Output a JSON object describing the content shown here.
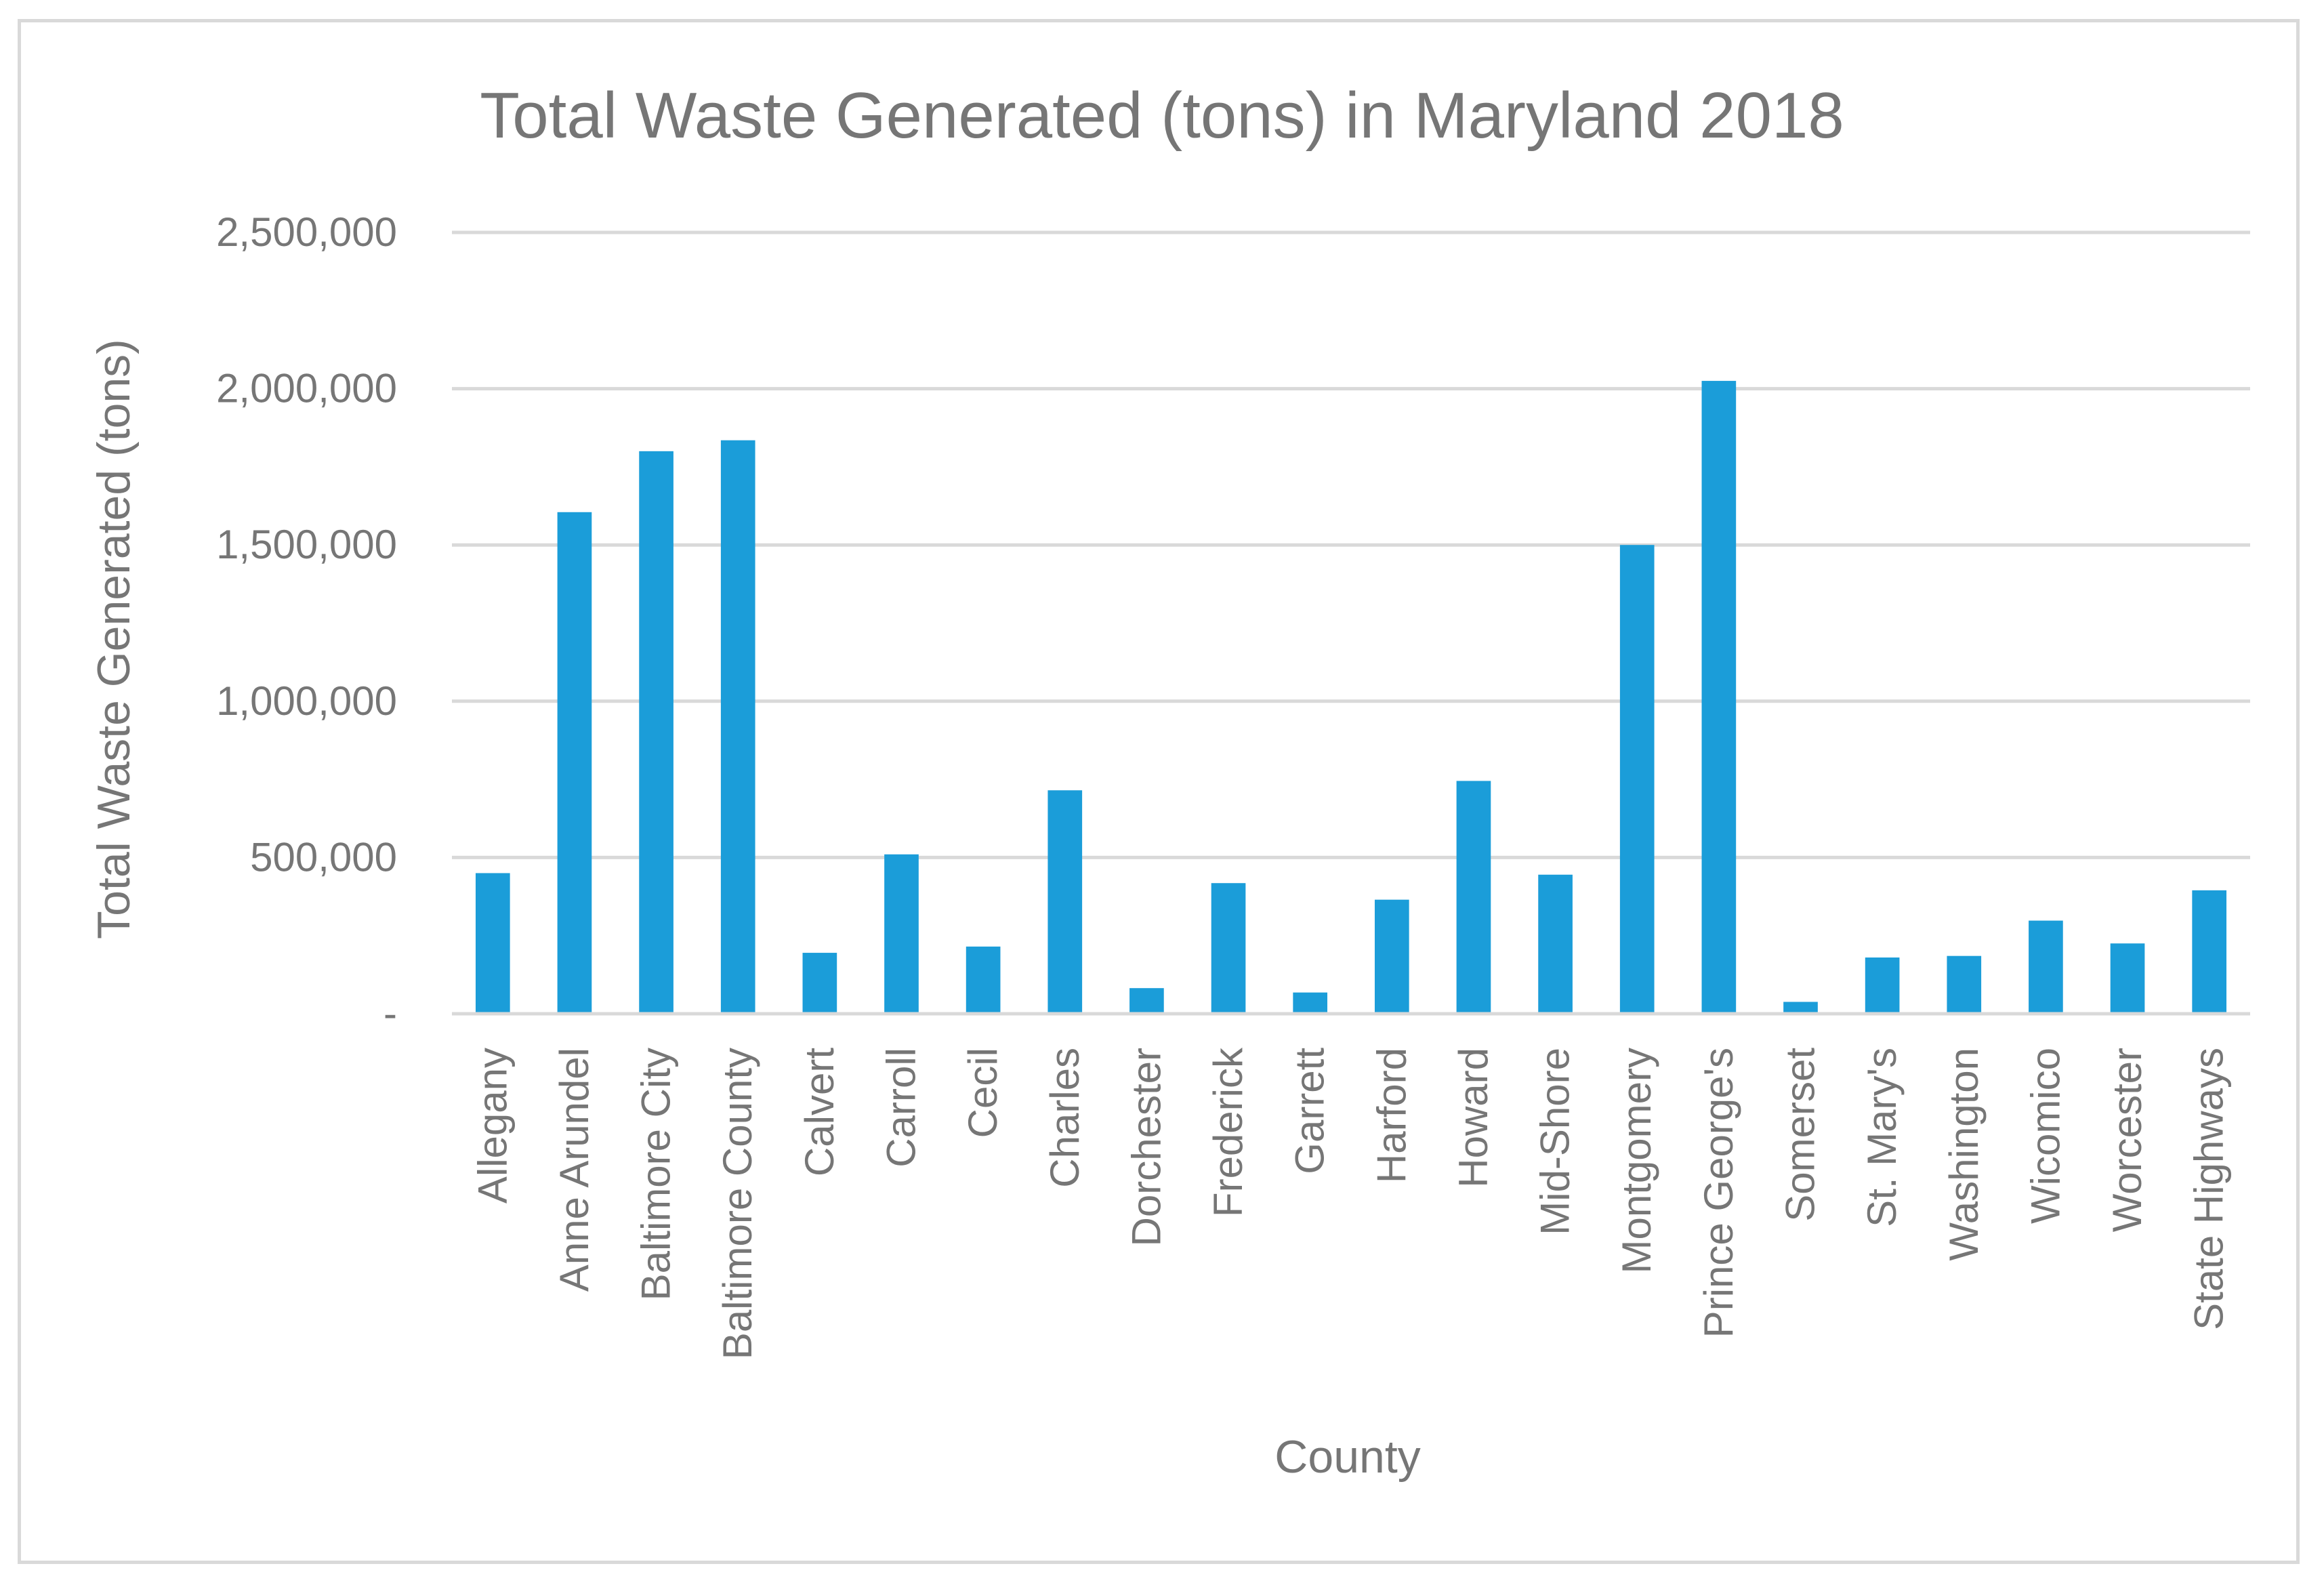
{
  "chart_data": {
    "type": "bar",
    "title": "Total Waste Generated (tons) in Maryland 2018",
    "xlabel": "County",
    "ylabel": "Total Waste Generated (tons)",
    "ylim": [
      0,
      2500000
    ],
    "y_ticks": [
      0,
      500000,
      1000000,
      1500000,
      2000000,
      2500000
    ],
    "y_tick_labels": [
      "-",
      "500,000",
      "1,000,000",
      "1,500,000",
      "2,000,000",
      "2,500,000"
    ],
    "grid": true,
    "bar_color": "#1b9dd9",
    "categories": [
      "Allegany",
      "Anne Arundel",
      "Baltimore City",
      "Baltimore County",
      "Calvert",
      "Carroll",
      "Cecil",
      "Charles",
      "Dorchester",
      "Frederick",
      "Garrett",
      "Harford",
      "Howard",
      "Mid-Shore",
      "Montgomery",
      "Prince George's",
      "Somerset",
      "St. Mary's",
      "Washington",
      "Wicomico",
      "Worcester",
      "State Highways"
    ],
    "values": [
      450000,
      1605000,
      1800000,
      1835000,
      195000,
      510000,
      215000,
      715000,
      82000,
      418000,
      68000,
      365000,
      745000,
      445000,
      1500000,
      2025000,
      38000,
      180000,
      185000,
      298000,
      225000,
      395000
    ]
  }
}
